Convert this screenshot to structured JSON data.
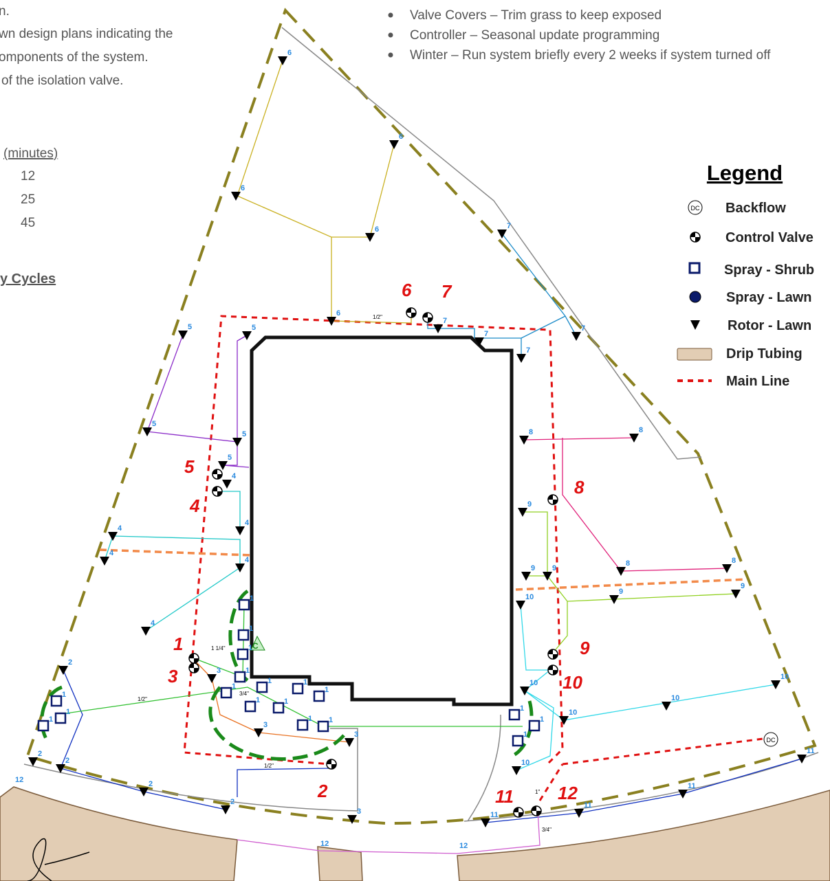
{
  "notes": {
    "lines": [
      "n.",
      "wn design plans indicating the",
      "omponents of the system.",
      "of the isolation valve."
    ]
  },
  "schedule": {
    "header": "(minutes)",
    "values": [
      "12",
      "25",
      "45"
    ],
    "cycles_heading": "y Cycles"
  },
  "maintenance": {
    "items": [
      "Valve Covers – Trim grass to keep exposed",
      "Controller – Seasonal update programming",
      "Winter – Run system briefly every 2 weeks if system turned off"
    ]
  },
  "legend": {
    "title": "Legend",
    "items": [
      "Backflow",
      "Control Valve",
      "Spray - Shrub",
      "Spray - Lawn",
      "Rotor - Lawn",
      "Drip Tubing",
      "Main Line"
    ],
    "backflow_symbol": "DC"
  },
  "controller_symbol": "C",
  "zones": [
    "1",
    "2",
    "3",
    "4",
    "5",
    "6",
    "7",
    "8",
    "9",
    "10",
    "11",
    "12"
  ],
  "rotor_heads": [
    "6",
    "6",
    "6",
    "6",
    "6",
    "7",
    "7",
    "7",
    "7",
    "7",
    "5",
    "5",
    "5",
    "5",
    "5",
    "8",
    "8",
    "8",
    "8",
    "4",
    "4",
    "4",
    "4",
    "4",
    "4",
    "9",
    "9",
    "9",
    "9",
    "9",
    "10",
    "10",
    "10",
    "10",
    "10",
    "10",
    "2",
    "2",
    "2",
    "2",
    "2",
    "3",
    "3",
    "3",
    "3",
    "11",
    "11",
    "11",
    "11"
  ],
  "shrub_heads": [
    "1",
    "1",
    "1",
    "1",
    "1",
    "1",
    "1",
    "1",
    "1",
    "1",
    "1",
    "1",
    "1",
    "1",
    "1",
    "1",
    "1",
    "1"
  ],
  "drip_zone_labels": [
    "12",
    "12",
    "12"
  ],
  "pipe_sizes": [
    "1/2\"",
    "1/2\"",
    "3/4\"",
    "1\"",
    "1 1/4\"",
    "1/2\"",
    "3/4\""
  ]
}
